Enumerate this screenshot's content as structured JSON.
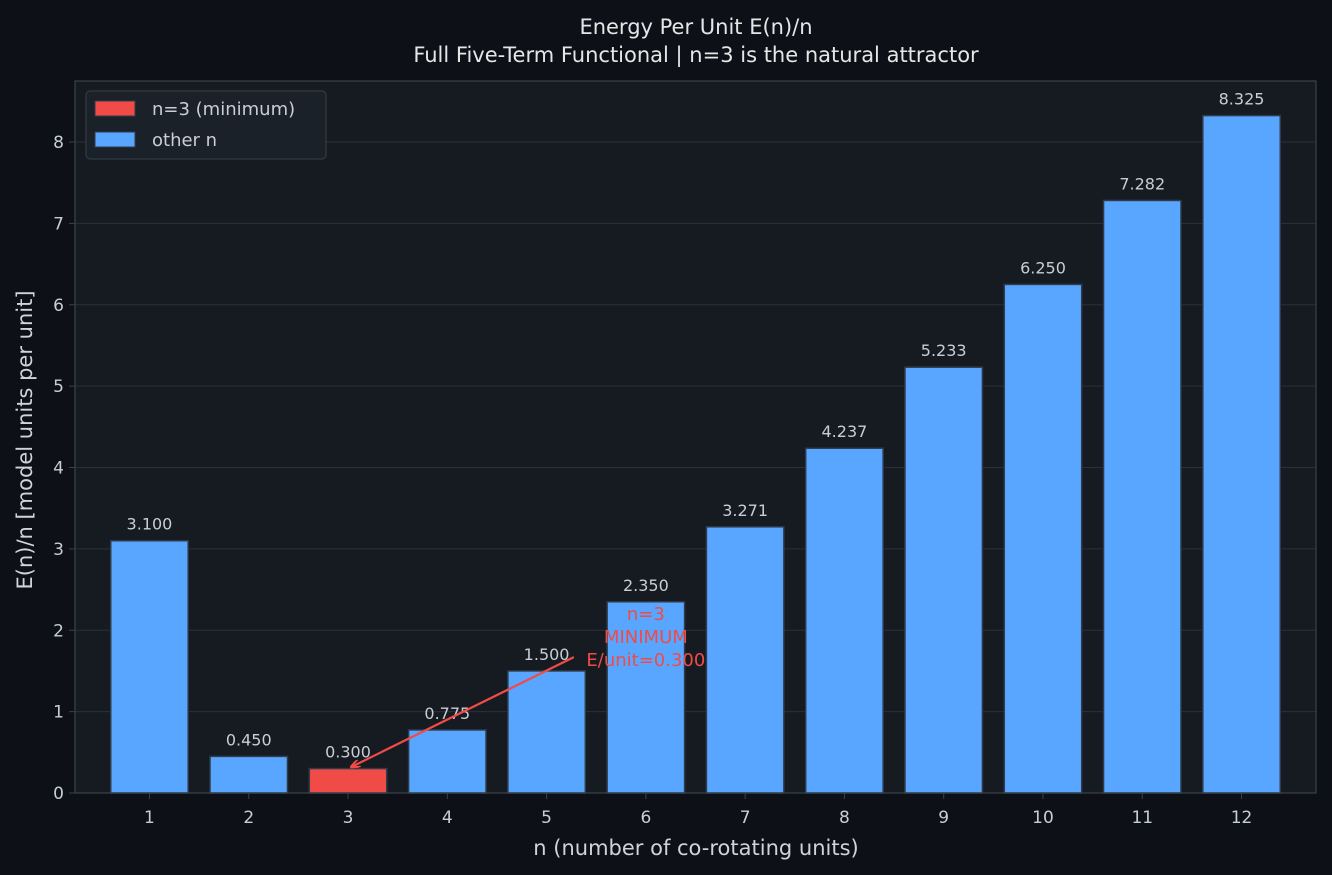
{
  "chart_data": {
    "type": "bar",
    "title": "Energy Per Unit E(n)/n",
    "subtitle": "Full Five-Term Functional  |  n=3 is the natural attractor",
    "xlabel": "n  (number of co-rotating units)",
    "ylabel": "E(n)/n  [model units per unit]",
    "categories": [
      "1",
      "2",
      "3",
      "4",
      "5",
      "6",
      "7",
      "8",
      "9",
      "10",
      "11",
      "12"
    ],
    "values": [
      3.1,
      0.45,
      0.3,
      0.775,
      1.5,
      2.35,
      3.271,
      4.237,
      5.233,
      6.25,
      7.282,
      8.325
    ],
    "value_labels": [
      "3.100",
      "0.450",
      "0.300",
      "0.775",
      "1.500",
      "2.350",
      "3.271",
      "4.237",
      "5.233",
      "6.250",
      "7.282",
      "8.325"
    ],
    "highlight_index": 2,
    "ylim": [
      0,
      8.75
    ],
    "yticks": [
      "0",
      "1",
      "2",
      "3",
      "4",
      "5",
      "6",
      "7",
      "8"
    ],
    "grid": "horizontal",
    "legend_position": "top-left",
    "legend": [
      {
        "label": "n=3 (minimum)",
        "color": "#f04b47"
      },
      {
        "label": "other n",
        "color": "#58a6ff"
      }
    ],
    "annotation": {
      "lines": [
        "n=3",
        "MINIMUM",
        "E/unit=0.300"
      ],
      "target_category": "3",
      "target_value": 0.3,
      "text_x_value": 6,
      "text_y_value": 2.35,
      "color": "#f04b47"
    },
    "colors": {
      "background": "#0d1117",
      "plot_background": "#161b22",
      "bar": "#58a6ff",
      "highlight": "#f04b47",
      "bar_edge": "#2f3b4a",
      "grid": "#2a313b",
      "spine": "#3a414b"
    }
  }
}
